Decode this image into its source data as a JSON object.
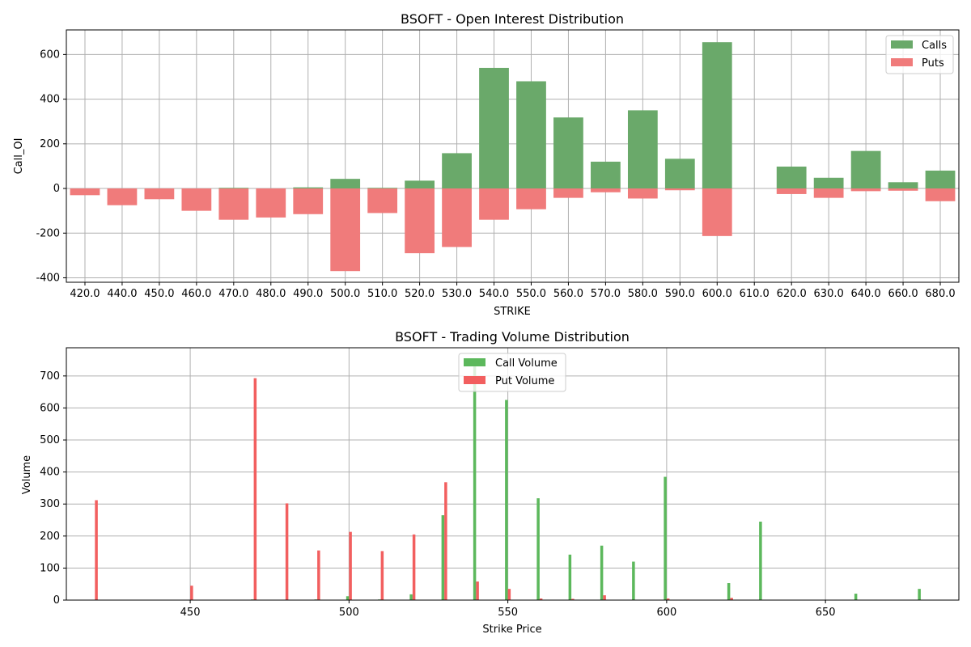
{
  "chart_data": [
    {
      "type": "bar",
      "title": "BSOFT - Open Interest Distribution",
      "xlabel": "STRIKE",
      "ylabel": "Call_OI",
      "ylim": [
        -420,
        710
      ],
      "yticks": [
        -400,
        -200,
        0,
        200,
        400,
        600
      ],
      "grid": true,
      "legend_position": "top-right",
      "categories": [
        "420.0",
        "440.0",
        "450.0",
        "460.0",
        "470.0",
        "480.0",
        "490.0",
        "500.0",
        "510.0",
        "520.0",
        "530.0",
        "540.0",
        "550.0",
        "560.0",
        "570.0",
        "580.0",
        "590.0",
        "600.0",
        "610.0",
        "620.0",
        "630.0",
        "640.0",
        "660.0",
        "680.0"
      ],
      "series": [
        {
          "name": "Calls",
          "color": "#6aa96a",
          "values": [
            0,
            0,
            0,
            0,
            3,
            0,
            5,
            43,
            3,
            35,
            158,
            540,
            480,
            318,
            120,
            350,
            133,
            655,
            0,
            98,
            48,
            168,
            28,
            80
          ]
        },
        {
          "name": "Puts",
          "color": "#f07b7b",
          "values": [
            -30,
            -75,
            -48,
            -100,
            -140,
            -130,
            -115,
            -370,
            -110,
            -290,
            -262,
            -140,
            -93,
            -42,
            -17,
            -45,
            -8,
            -213,
            0,
            -25,
            -42,
            -12,
            -10,
            -57
          ]
        }
      ]
    },
    {
      "type": "bar",
      "title": "BSOFT - Trading Volume Distribution",
      "xlabel": "Strike Price",
      "ylabel": "Volume",
      "xlim": [
        411,
        692
      ],
      "ylim": [
        0,
        788
      ],
      "xticks": [
        450,
        500,
        550,
        600,
        650
      ],
      "yticks": [
        0,
        100,
        200,
        300,
        400,
        500,
        600,
        700
      ],
      "grid": true,
      "legend_position": "top-center",
      "x": [
        420,
        440,
        450,
        460,
        470,
        480,
        490,
        500,
        510,
        520,
        530,
        540,
        550,
        560,
        570,
        580,
        590,
        600,
        610,
        620,
        630,
        640,
        660,
        680
      ],
      "series": [
        {
          "name": "Call Volume",
          "color": "#5cb85c",
          "values": [
            0,
            0,
            0,
            0,
            2,
            0,
            2,
            12,
            2,
            18,
            265,
            740,
            625,
            318,
            142,
            170,
            120,
            385,
            0,
            53,
            245,
            0,
            20,
            35
          ]
        },
        {
          "name": "Put Volume",
          "color": "#f25f5f",
          "values": [
            312,
            0,
            45,
            0,
            693,
            302,
            155,
            213,
            153,
            205,
            368,
            58,
            35,
            5,
            4,
            15,
            0,
            5,
            0,
            7,
            0,
            0,
            0,
            0
          ]
        }
      ]
    }
  ]
}
